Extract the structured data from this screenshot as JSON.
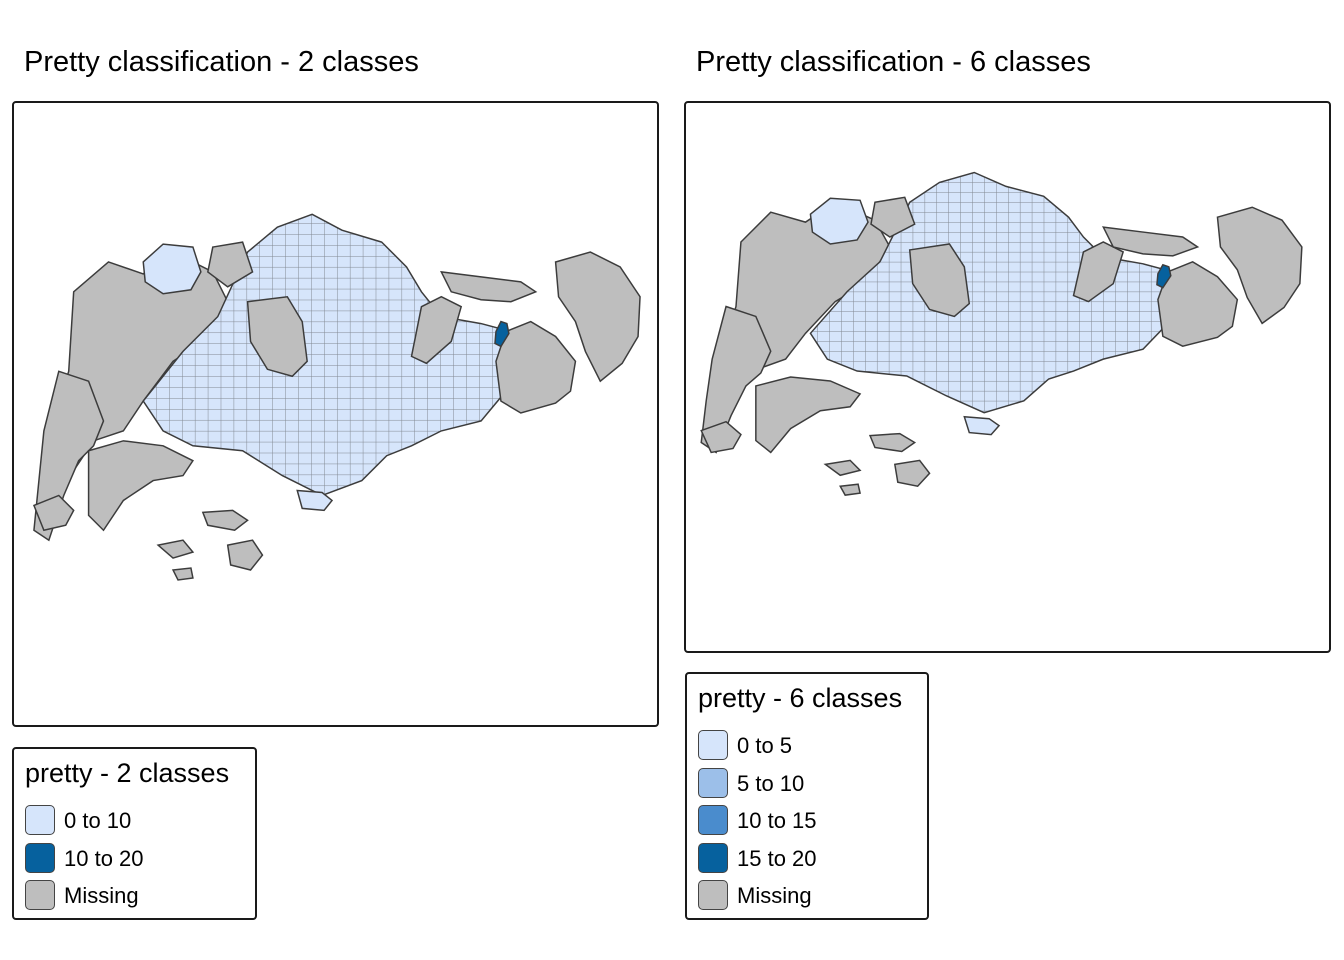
{
  "colors": {
    "missing": "#bebebe",
    "border": "#3c3c3c",
    "light": "#d6e5fb",
    "dark": "#06619e"
  },
  "maps": [
    {
      "title": "Pretty classification - 2 classes",
      "legend": {
        "title": "pretty - 2 classes",
        "items": [
          {
            "label": "0 to 10",
            "color": "#d6e5fb"
          },
          {
            "label": "10 to 20",
            "color": "#06619e"
          },
          {
            "label": "Missing",
            "color": "#bebebe"
          }
        ]
      }
    },
    {
      "title": "Pretty classification - 6 classes",
      "legend": {
        "title": "pretty - 6 classes",
        "items": [
          {
            "label": "0 to 5",
            "color": "#d6e5fb"
          },
          {
            "label": "5 to 10",
            "color": "#9cbfe9"
          },
          {
            "label": "10 to 15",
            "color": "#4a8ccd"
          },
          {
            "label": "15 to 20",
            "color": "#06619e"
          },
          {
            "label": "Missing",
            "color": "#bebebe"
          }
        ]
      }
    }
  ]
}
